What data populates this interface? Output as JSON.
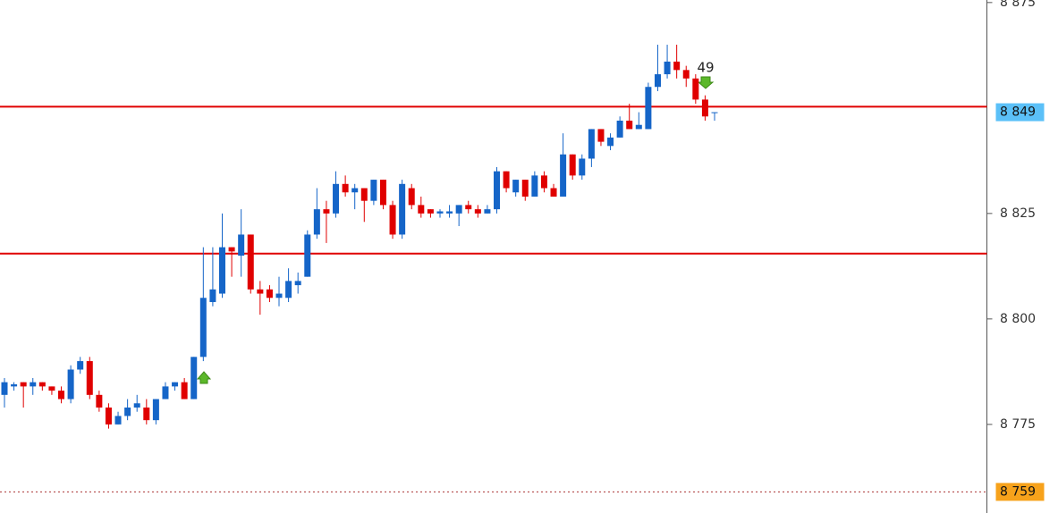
{
  "chart_data": {
    "type": "candlestick",
    "up_color": "#1565c8",
    "down_color": "#e00000",
    "open": [
      8782,
      8784,
      8785,
      8784,
      8785,
      8784,
      8783,
      8781,
      8788,
      8790,
      8782,
      8779,
      8775,
      8777,
      8779,
      8779,
      8776,
      8781,
      8784,
      8785,
      8781,
      8791,
      8804,
      8806,
      8817,
      8815,
      8820,
      8807,
      8807,
      8805,
      8805,
      8808,
      8810,
      8820,
      8826,
      8825,
      8832,
      8830,
      8831,
      8828,
      8833,
      8827,
      8820,
      8831,
      8827,
      8826,
      8825,
      8825,
      8825,
      8827,
      8826,
      8825,
      8826,
      8835,
      8830,
      8833,
      8829,
      8834,
      8831,
      8829,
      8839,
      8834,
      8838,
      8845,
      8841,
      8843,
      8847,
      8845,
      8845,
      8855,
      8858,
      8861,
      8859,
      8857,
      8852,
      8849
    ],
    "high": [
      8786,
      8785,
      8785,
      8786,
      8785,
      8784,
      8784,
      8789,
      8791,
      8791,
      8783,
      8780,
      8778,
      8781,
      8782,
      8781,
      8781,
      8785,
      8785,
      8786,
      8791,
      8817,
      8817,
      8825,
      8817,
      8826,
      8820,
      8809,
      8808,
      8810,
      8812,
      8811,
      8821,
      8831,
      8828,
      8835,
      8834,
      8832,
      8831,
      8833,
      8833,
      8828,
      8833,
      8832,
      8829,
      8826,
      8826,
      8827,
      8827,
      8828,
      8827,
      8827,
      8836,
      8835,
      8833,
      8833,
      8835,
      8835,
      8832,
      8844,
      8839,
      8839,
      8845,
      8845,
      8844,
      8848,
      8851,
      8849,
      8856,
      8865,
      8865,
      8865,
      8860,
      8858,
      8853,
      8849
    ],
    "low": [
      8779,
      8783,
      8779,
      8782,
      8783,
      8782,
      8780,
      8780,
      8787,
      8781,
      8778,
      8774,
      8775,
      8776,
      8778,
      8775,
      8775,
      8781,
      8783,
      8781,
      8781,
      8790,
      8803,
      8805,
      8810,
      8810,
      8806,
      8801,
      8804,
      8803,
      8804,
      8806,
      8810,
      8819,
      8818,
      8824,
      8829,
      8826,
      8823,
      8827,
      8826,
      8819,
      8819,
      8826,
      8824,
      8824,
      8824,
      8824,
      8822,
      8825,
      8824,
      8825,
      8825,
      8830,
      8829,
      8828,
      8829,
      8830,
      8829,
      8829,
      8833,
      8833,
      8836,
      8841,
      8840,
      8843,
      8845,
      8845,
      8845,
      8854,
      8857,
      8857,
      8855,
      8851,
      8847,
      8847
    ],
    "close": [
      8785,
      8784.5,
      8784,
      8785,
      8784,
      8783,
      8781,
      8788,
      8790,
      8782,
      8779,
      8775,
      8777,
      8779,
      8780,
      8776,
      8781,
      8784,
      8785,
      8781,
      8791,
      8805,
      8807,
      8817,
      8816,
      8820,
      8807,
      8806,
      8805,
      8806,
      8809,
      8809,
      8820,
      8826,
      8825,
      8832,
      8830,
      8831,
      8828,
      8833,
      8827,
      8820,
      8832,
      8827,
      8825,
      8825,
      8825.5,
      8825.5,
      8827,
      8826,
      8825,
      8826,
      8835,
      8831,
      8833,
      8829,
      8834,
      8831,
      8829,
      8839,
      8834,
      8838,
      8845,
      8842,
      8843,
      8847,
      8845,
      8846,
      8855,
      8858,
      8861,
      8859,
      8857,
      8852,
      8848,
      8849
    ],
    "ylim": [
      8754,
      8875.6
    ],
    "yticks": [
      {
        "value": 8875,
        "label": "8 875"
      },
      {
        "value": 8825,
        "label": "8 825"
      },
      {
        "value": 8800,
        "label": "8 800"
      },
      {
        "value": 8775,
        "label": "8 775"
      }
    ],
    "hlines": [
      8850.3,
      8815.5
    ],
    "hline_color": "#e00000",
    "price_markers": [
      {
        "value": 8849,
        "label": "8 849",
        "color": "#5bc0f8"
      },
      {
        "value": 8759,
        "label": "8 759",
        "color": "#f7a21b"
      }
    ],
    "annotation": "49"
  }
}
